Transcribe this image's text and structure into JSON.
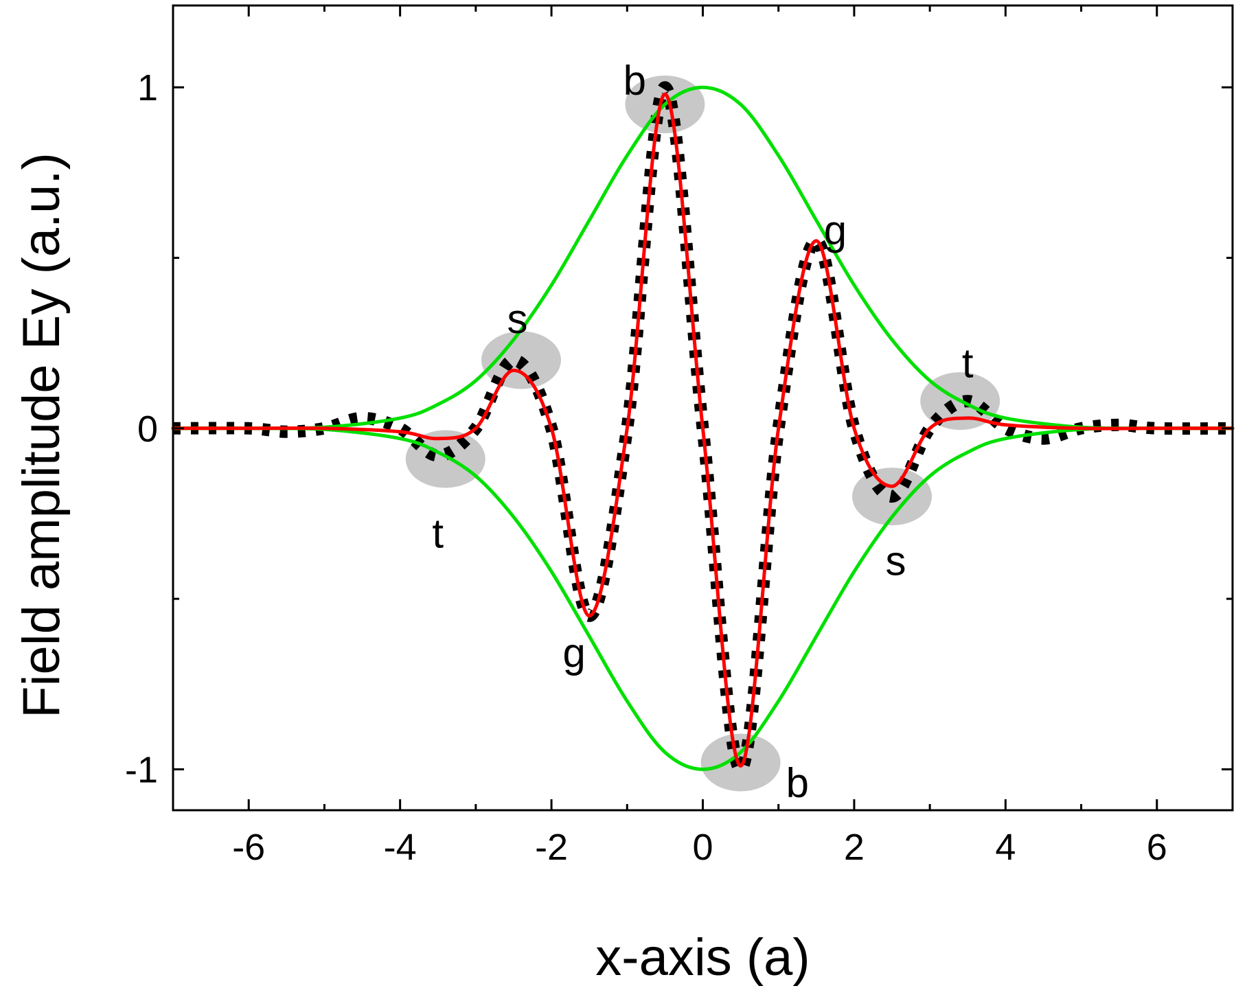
{
  "chart_data": {
    "type": "line",
    "xlabel": "x-axis (a)",
    "ylabel": "Field amplitude Ey (a.u.)",
    "xlim": [
      -7,
      7
    ],
    "ylim": [
      -1.12,
      1.24
    ],
    "x_ticks": [
      -6,
      -4,
      -2,
      0,
      2,
      4,
      6
    ],
    "x_tick_labels": [
      "-6",
      "-4",
      "-2",
      "0",
      "2",
      "4",
      "6"
    ],
    "y_ticks": [
      -1,
      0,
      1
    ],
    "y_tick_labels": [
      "-1",
      "0",
      "1"
    ],
    "grid": false,
    "series": [
      {
        "style": "thick black dashed",
        "color": "#000000",
        "x": [
          -7,
          -6,
          -5.5,
          -5,
          -4.5,
          -4,
          -3.5,
          -3,
          -2.5,
          -2,
          -1.5,
          -1,
          -0.5,
          0,
          0.5,
          1,
          1.5,
          2,
          2.5,
          3,
          3.5,
          4,
          4.5,
          5,
          5.5,
          6,
          7
        ],
        "y": [
          0.0,
          0.0,
          -0.01,
          0.0,
          0.03,
          0.0,
          -0.08,
          0.0,
          0.2,
          0.0,
          -0.55,
          0.0,
          1.0,
          0.0,
          -1.0,
          0.0,
          0.55,
          0.0,
          -0.2,
          0.0,
          0.08,
          0.0,
          -0.03,
          0.0,
          0.01,
          0.0,
          0.0
        ]
      },
      {
        "style": "red solid",
        "color": "#ff0000",
        "x": [
          -7,
          -6,
          -5,
          -4,
          -3.5,
          -3,
          -2.5,
          -2,
          -1.5,
          -1,
          -0.5,
          0,
          0.5,
          1,
          1.5,
          2,
          2.5,
          3,
          3.5,
          4,
          5,
          6,
          7
        ],
        "y": [
          0.0,
          0.0,
          0.0,
          -0.01,
          -0.03,
          0.0,
          0.17,
          0.0,
          -0.55,
          0.0,
          0.98,
          0.0,
          -0.99,
          0.0,
          0.55,
          0.0,
          -0.17,
          0.0,
          0.03,
          0.01,
          0.0,
          0.0,
          0.0
        ]
      },
      {
        "style": "green envelope (upper)",
        "color": "#00e000",
        "x": [
          -7,
          -6,
          -5,
          -4,
          -3.5,
          -3,
          -2.5,
          -2,
          -1.5,
          -1,
          -0.5,
          0,
          0.5,
          1,
          1.5,
          2,
          2.5,
          3,
          3.5,
          4,
          5,
          6,
          7
        ],
        "y": [
          0.0,
          0.0,
          0.003,
          0.03,
          0.07,
          0.14,
          0.26,
          0.42,
          0.61,
          0.8,
          0.95,
          1.0,
          0.95,
          0.8,
          0.61,
          0.42,
          0.26,
          0.14,
          0.07,
          0.03,
          0.003,
          0.0,
          0.0
        ]
      },
      {
        "style": "green envelope (lower)",
        "color": "#00e000",
        "x": [
          -7,
          -6,
          -5,
          -4,
          -3.5,
          -3,
          -2.5,
          -2,
          -1.5,
          -1,
          -0.5,
          0,
          0.5,
          1,
          1.5,
          2,
          2.5,
          3,
          3.5,
          4,
          5,
          6,
          7
        ],
        "y": [
          0.0,
          0.0,
          -0.003,
          -0.03,
          -0.07,
          -0.14,
          -0.26,
          -0.42,
          -0.61,
          -0.8,
          -0.95,
          -1.0,
          -0.95,
          -0.8,
          -0.61,
          -0.42,
          -0.26,
          -0.14,
          -0.07,
          -0.03,
          -0.003,
          0.0,
          0.0
        ]
      }
    ],
    "highlights": [
      {
        "label": "b",
        "x": -0.5,
        "y": 0.95
      },
      {
        "label": "b",
        "x": 0.5,
        "y": -0.98
      },
      {
        "label": "s",
        "x": -2.4,
        "y": 0.2
      },
      {
        "label": "s",
        "x": 2.5,
        "y": -0.2
      },
      {
        "label": "t",
        "x": -3.4,
        "y": -0.09
      },
      {
        "label": "t",
        "x": 3.4,
        "y": 0.08
      }
    ],
    "annotations": [
      {
        "text": "b",
        "x": -0.9,
        "y": 1.02
      },
      {
        "text": "b",
        "x": 1.25,
        "y": -1.04
      },
      {
        "text": "g",
        "x": 1.75,
        "y": 0.58
      },
      {
        "text": "g",
        "x": -1.7,
        "y": -0.66
      },
      {
        "text": "s",
        "x": -2.45,
        "y": 0.32
      },
      {
        "text": "s",
        "x": 2.55,
        "y": -0.39
      },
      {
        "text": "t",
        "x": 3.5,
        "y": 0.19
      },
      {
        "text": "t",
        "x": -3.5,
        "y": -0.31
      }
    ],
    "colors": {
      "highlight": "#c8c8c8"
    }
  }
}
